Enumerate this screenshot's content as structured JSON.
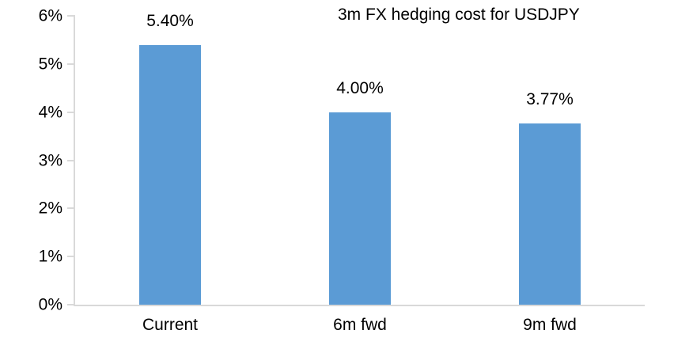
{
  "chart_data": {
    "type": "bar",
    "title": "3m FX hedging cost for USDJPY",
    "categories": [
      "Current",
      "6m fwd",
      "9m fwd"
    ],
    "values": [
      5.4,
      4.0,
      3.77
    ],
    "data_labels": [
      "5.40%",
      "4.00%",
      "3.77%"
    ],
    "xlabel": "",
    "ylabel": "",
    "ylim": [
      0,
      6
    ],
    "yticks": [
      "0%",
      "1%",
      "2%",
      "3%",
      "4%",
      "5%",
      "6%"
    ],
    "grid": false,
    "legend": false,
    "colors": {
      "bar": "#5b9bd5",
      "axis": "#d9d9d9",
      "text": "#000000",
      "background": "#ffffff"
    }
  }
}
